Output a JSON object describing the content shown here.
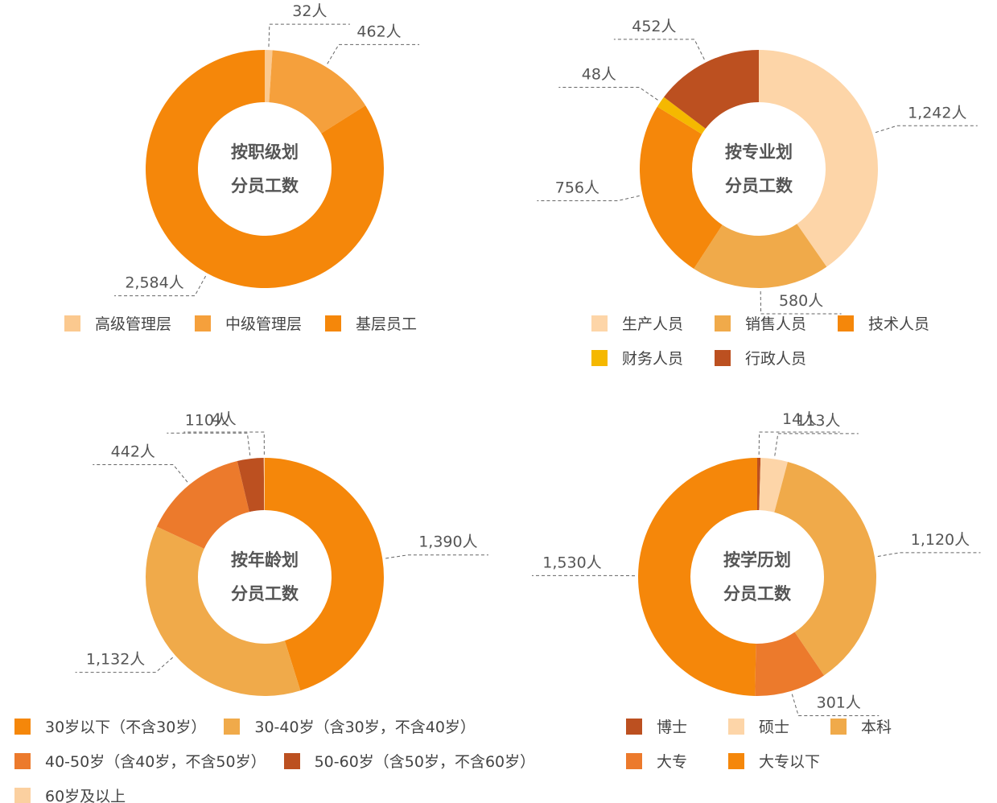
{
  "chart_data": [
    {
      "type": "donut",
      "title": "按职级划分员工数",
      "categories": [
        "高级管理层",
        "中级管理层",
        "基层员工"
      ],
      "values": [
        32,
        462,
        2584
      ],
      "value_labels": [
        "32人",
        "462人",
        "2,584人"
      ],
      "colors": [
        "#fbc98f",
        "#f5a03c",
        "#f5870a"
      ]
    },
    {
      "type": "donut",
      "title": "按专业划分员工数",
      "categories": [
        "生产人员",
        "销售人员",
        "技术人员",
        "财务人员",
        "行政人员"
      ],
      "values": [
        1242,
        580,
        756,
        48,
        452
      ],
      "value_labels": [
        "1,242人",
        "580人",
        "756人",
        "48人",
        "452人"
      ],
      "colors": [
        "#fdd5a8",
        "#f0aa4a",
        "#f5870a",
        "#f5b800",
        "#bc5020"
      ]
    },
    {
      "type": "donut",
      "title": "按年龄划分员工数",
      "categories": [
        "30岁以下（不含30岁）",
        "30-40岁（含30岁，不含40岁）",
        "40-50岁（含40岁，不含50岁）",
        "50-60岁（含50岁，不含60岁）",
        "60岁及以上"
      ],
      "values": [
        1390,
        1132,
        442,
        110,
        4
      ],
      "value_labels": [
        "1,390人",
        "1,132人",
        "442人",
        "110人",
        "4人"
      ],
      "colors": [
        "#f5870a",
        "#f0aa4a",
        "#ec7a2c",
        "#bc5020",
        "#fbd0a0"
      ]
    },
    {
      "type": "donut",
      "title": "按学历划分员工数",
      "categories": [
        "博士",
        "硕士",
        "本科",
        "大专",
        "大专以下"
      ],
      "values": [
        14,
        113,
        1120,
        301,
        1530
      ],
      "value_labels": [
        "14人",
        "113人",
        "1,120人",
        "301人",
        "1,530人"
      ],
      "colors": [
        "#bc5020",
        "#fdd5a8",
        "#f0aa4a",
        "#ec7a2c",
        "#f5870a"
      ]
    }
  ]
}
